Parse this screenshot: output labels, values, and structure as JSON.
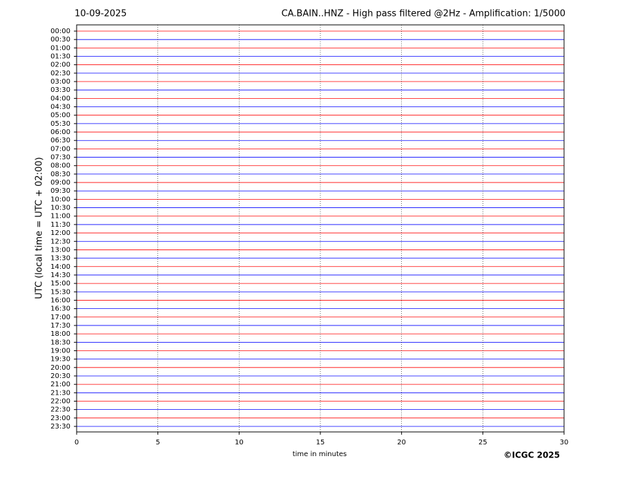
{
  "chart_data": {
    "type": "helicorder",
    "date": "10-09-2025",
    "title": "CA.BAIN..HNZ - High pass filtered @2Hz - Amplification: 1/5000",
    "xlabel": "time in minutes",
    "ylabel": "UTC (local time = UTC + 02:00)",
    "categories": [
      "00:00",
      "00:30",
      "01:00",
      "01:30",
      "02:00",
      "02:30",
      "03:00",
      "03:30",
      "04:00",
      "04:30",
      "05:00",
      "05:30",
      "06:00",
      "06:30",
      "07:00",
      "07:30",
      "08:00",
      "08:30",
      "09:00",
      "09:30",
      "10:00",
      "10:30",
      "11:00",
      "11:30",
      "12:00",
      "12:30",
      "13:00",
      "13:30",
      "14:00",
      "14:30",
      "15:00",
      "15:30",
      "16:00",
      "16:30",
      "17:00",
      "17:30",
      "18:00",
      "18:30",
      "19:00",
      "19:30",
      "20:00",
      "20:30",
      "21:00",
      "21:30",
      "22:00",
      "22:30",
      "23:00",
      "23:30"
    ],
    "colors": [
      "#ff0000",
      "#0000ff"
    ],
    "xlim": [
      0,
      30
    ],
    "xticks": [
      0,
      5,
      10,
      15,
      20,
      25,
      30
    ],
    "grid": true
  },
  "footer": {
    "copyright": "©ICGC 2025"
  }
}
